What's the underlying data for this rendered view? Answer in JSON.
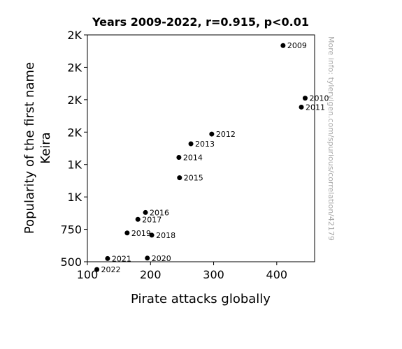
{
  "chart_data": {
    "type": "scatter",
    "title": "Years 2009-2022, r=0.915, p<0.01",
    "xlabel": "Pirate attacks globally",
    "ylabel_lines": [
      "Popularity of the first name",
      "Keira"
    ],
    "watermark": "More info: tylervigen.com/spurious/correlation/42179",
    "xlim": [
      100,
      460
    ],
    "ylim": [
      500,
      2250
    ],
    "xticks": [
      {
        "value": 100,
        "label": "100"
      },
      {
        "value": 200,
        "label": "200"
      },
      {
        "value": 300,
        "label": "300"
      },
      {
        "value": 400,
        "label": "400"
      }
    ],
    "yticks": [
      {
        "value": 500,
        "label": "500"
      },
      {
        "value": 750,
        "label": "750"
      },
      {
        "value": 1000,
        "label": "1K"
      },
      {
        "value": 1250,
        "label": "1K"
      },
      {
        "value": 1500,
        "label": "2K"
      },
      {
        "value": 1750,
        "label": "2K"
      },
      {
        "value": 2000,
        "label": "2K"
      },
      {
        "value": 2250,
        "label": "2K"
      }
    ],
    "points": [
      {
        "label": "2009",
        "x": 410,
        "y": 2168
      },
      {
        "label": "2010",
        "x": 445,
        "y": 1762
      },
      {
        "label": "2011",
        "x": 439,
        "y": 1693
      },
      {
        "label": "2012",
        "x": 297,
        "y": 1485
      },
      {
        "label": "2013",
        "x": 264,
        "y": 1410
      },
      {
        "label": "2014",
        "x": 245,
        "y": 1305
      },
      {
        "label": "2015",
        "x": 246,
        "y": 1148
      },
      {
        "label": "2016",
        "x": 192,
        "y": 880
      },
      {
        "label": "2017",
        "x": 180,
        "y": 827
      },
      {
        "label": "2018",
        "x": 202,
        "y": 705
      },
      {
        "label": "2019",
        "x": 163,
        "y": 722
      },
      {
        "label": "2020",
        "x": 195,
        "y": 528
      },
      {
        "label": "2021",
        "x": 132,
        "y": 525
      },
      {
        "label": "2022",
        "x": 115,
        "y": 440
      }
    ],
    "grid": false,
    "marker_color": "#000000"
  }
}
